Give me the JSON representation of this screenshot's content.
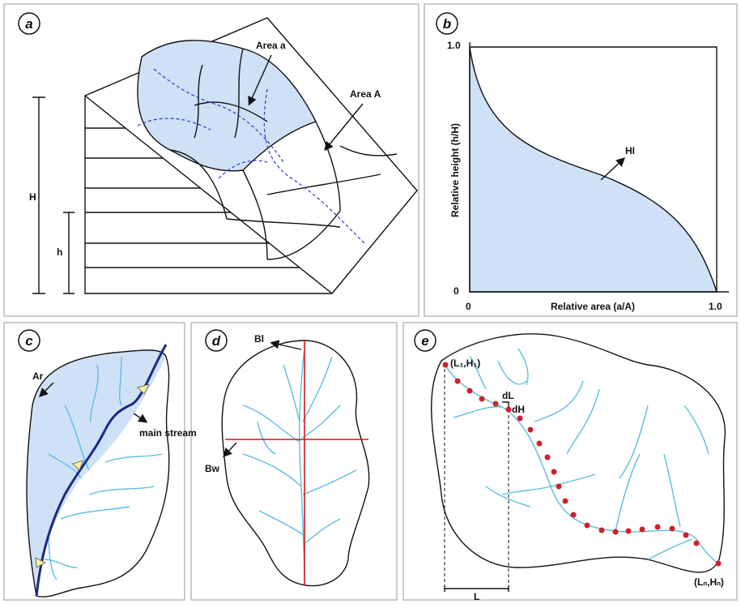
{
  "panels": {
    "a": {
      "label": "a",
      "area_small": "Area a",
      "area_large": "Area A",
      "H": "H",
      "h": "h"
    },
    "b": {
      "label": "b",
      "y_top": "1.0",
      "y_zero": "0",
      "y_axis": "Relative height (h/H)",
      "hi": "HI",
      "x_zero": "0",
      "x_axis": "Relative area (a/A)",
      "x_end": "1.0"
    },
    "c": {
      "label": "c",
      "ar": "Ar",
      "main_stream": "main stream"
    },
    "d": {
      "label": "d",
      "bl": "Bl",
      "bw": "Bw"
    },
    "e": {
      "label": "e",
      "start": "(L₁,H₁)",
      "dl": "dL",
      "dh": "dH",
      "l": "L",
      "end": "(Lₙ,Hₙ)"
    }
  }
}
